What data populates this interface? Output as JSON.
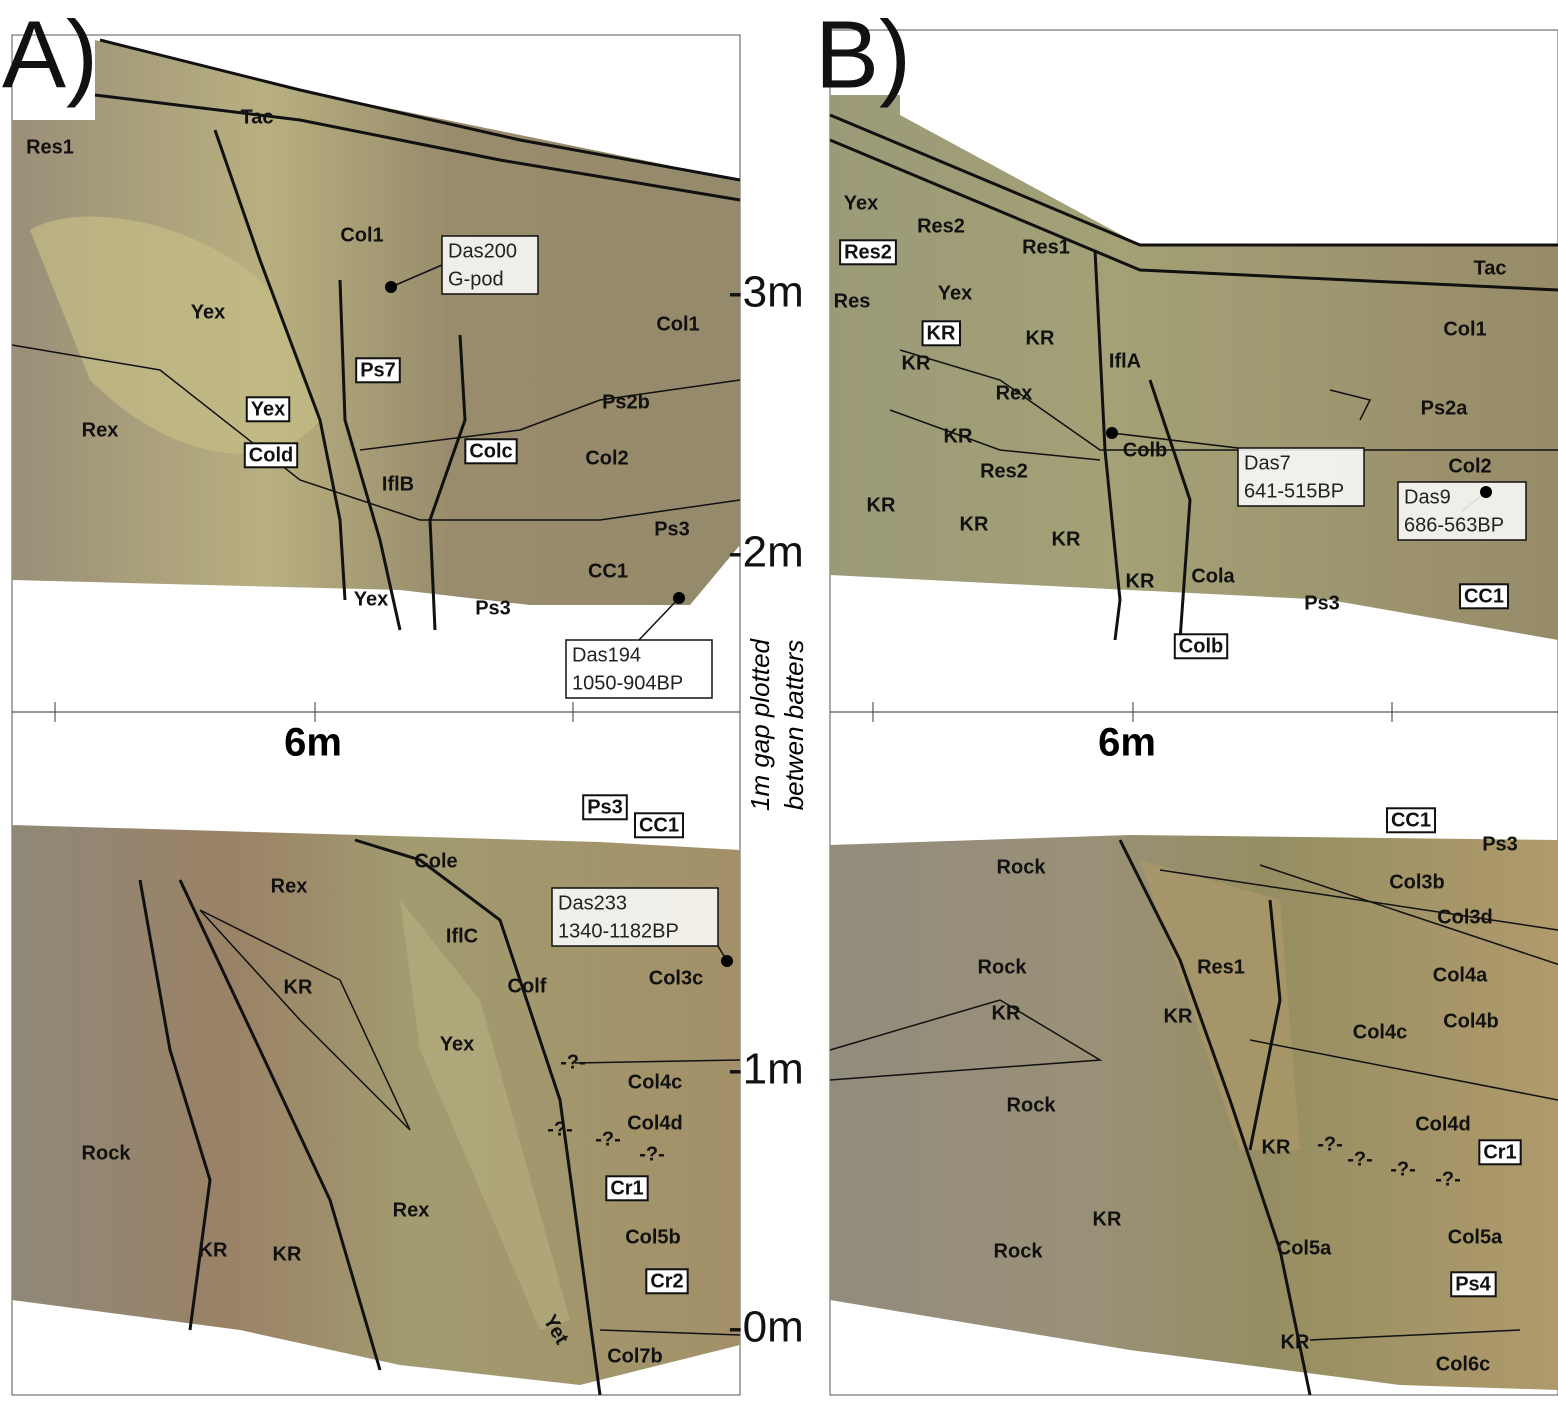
{
  "panels": [
    {
      "label": "A)",
      "scale": "6m",
      "upper": {
        "units": [
          "Tac",
          "Res1",
          "Col1",
          "Yex",
          "Col1",
          "Rex",
          "Ps2b",
          "IflB",
          "Col2",
          "Ps3",
          "CC1",
          "Yex",
          "Ps3"
        ],
        "boxed": [
          "Ps7",
          "Yex",
          "Cold",
          "Colc"
        ],
        "samples": [
          {
            "id": "Das200",
            "age": "G-pod"
          },
          {
            "id": "Das194",
            "age": "1050-904BP"
          }
        ]
      },
      "lower": {
        "units": [
          "Rex",
          "Cole",
          "IflC",
          "Colf",
          "KR",
          "Col3c",
          "Yex",
          "Col4c",
          "Col4d",
          "Rock",
          "Rex",
          "Col5b",
          "KR",
          "KR",
          "Yet",
          "Col7b",
          "-?-",
          "-?-",
          "-?-",
          "-?-"
        ],
        "boxed": [
          "Ps3",
          "CC1",
          "Cr1",
          "Cr2"
        ],
        "samples": [
          {
            "id": "Das233",
            "age": "1340-1182BP"
          }
        ]
      }
    },
    {
      "label": "B)",
      "scale": "6m",
      "upper": {
        "units": [
          "Yex",
          "Res2",
          "Res1",
          "Tac",
          "Yex",
          "Res",
          "KR",
          "Col1",
          "KR",
          "IflA",
          "Rex",
          "Ps2a",
          "KR",
          "Colb",
          "Col2",
          "Res2",
          "KR",
          "KR",
          "KR",
          "KR",
          "Cola",
          "Ps3"
        ],
        "boxed": [
          "Res2",
          "KR",
          "CC1",
          "Colb"
        ],
        "samples": [
          {
            "id": "Das7",
            "age": "641-515BP"
          },
          {
            "id": "Das9",
            "age": "686-563BP"
          }
        ]
      },
      "lower": {
        "units": [
          "Ps3",
          "Rock",
          "Col3b",
          "Col3d",
          "Rock",
          "Res1",
          "Col4a",
          "KR",
          "KR",
          "Col4b",
          "Col4c",
          "Rock",
          "Col4d",
          "KR",
          "KR",
          "Col5a",
          "Col5a",
          "Rock",
          "KR",
          "Col6c",
          "-?-",
          "-?-",
          "-?-",
          "-?-"
        ],
        "boxed": [
          "CC1",
          "Cr1",
          "Ps4"
        ],
        "samples": []
      }
    }
  ],
  "axis": {
    "ticks": [
      "-3m",
      "-2m",
      "-1m",
      "-0m"
    ],
    "note": [
      "1m gap plotted",
      "betwen batters"
    ]
  }
}
